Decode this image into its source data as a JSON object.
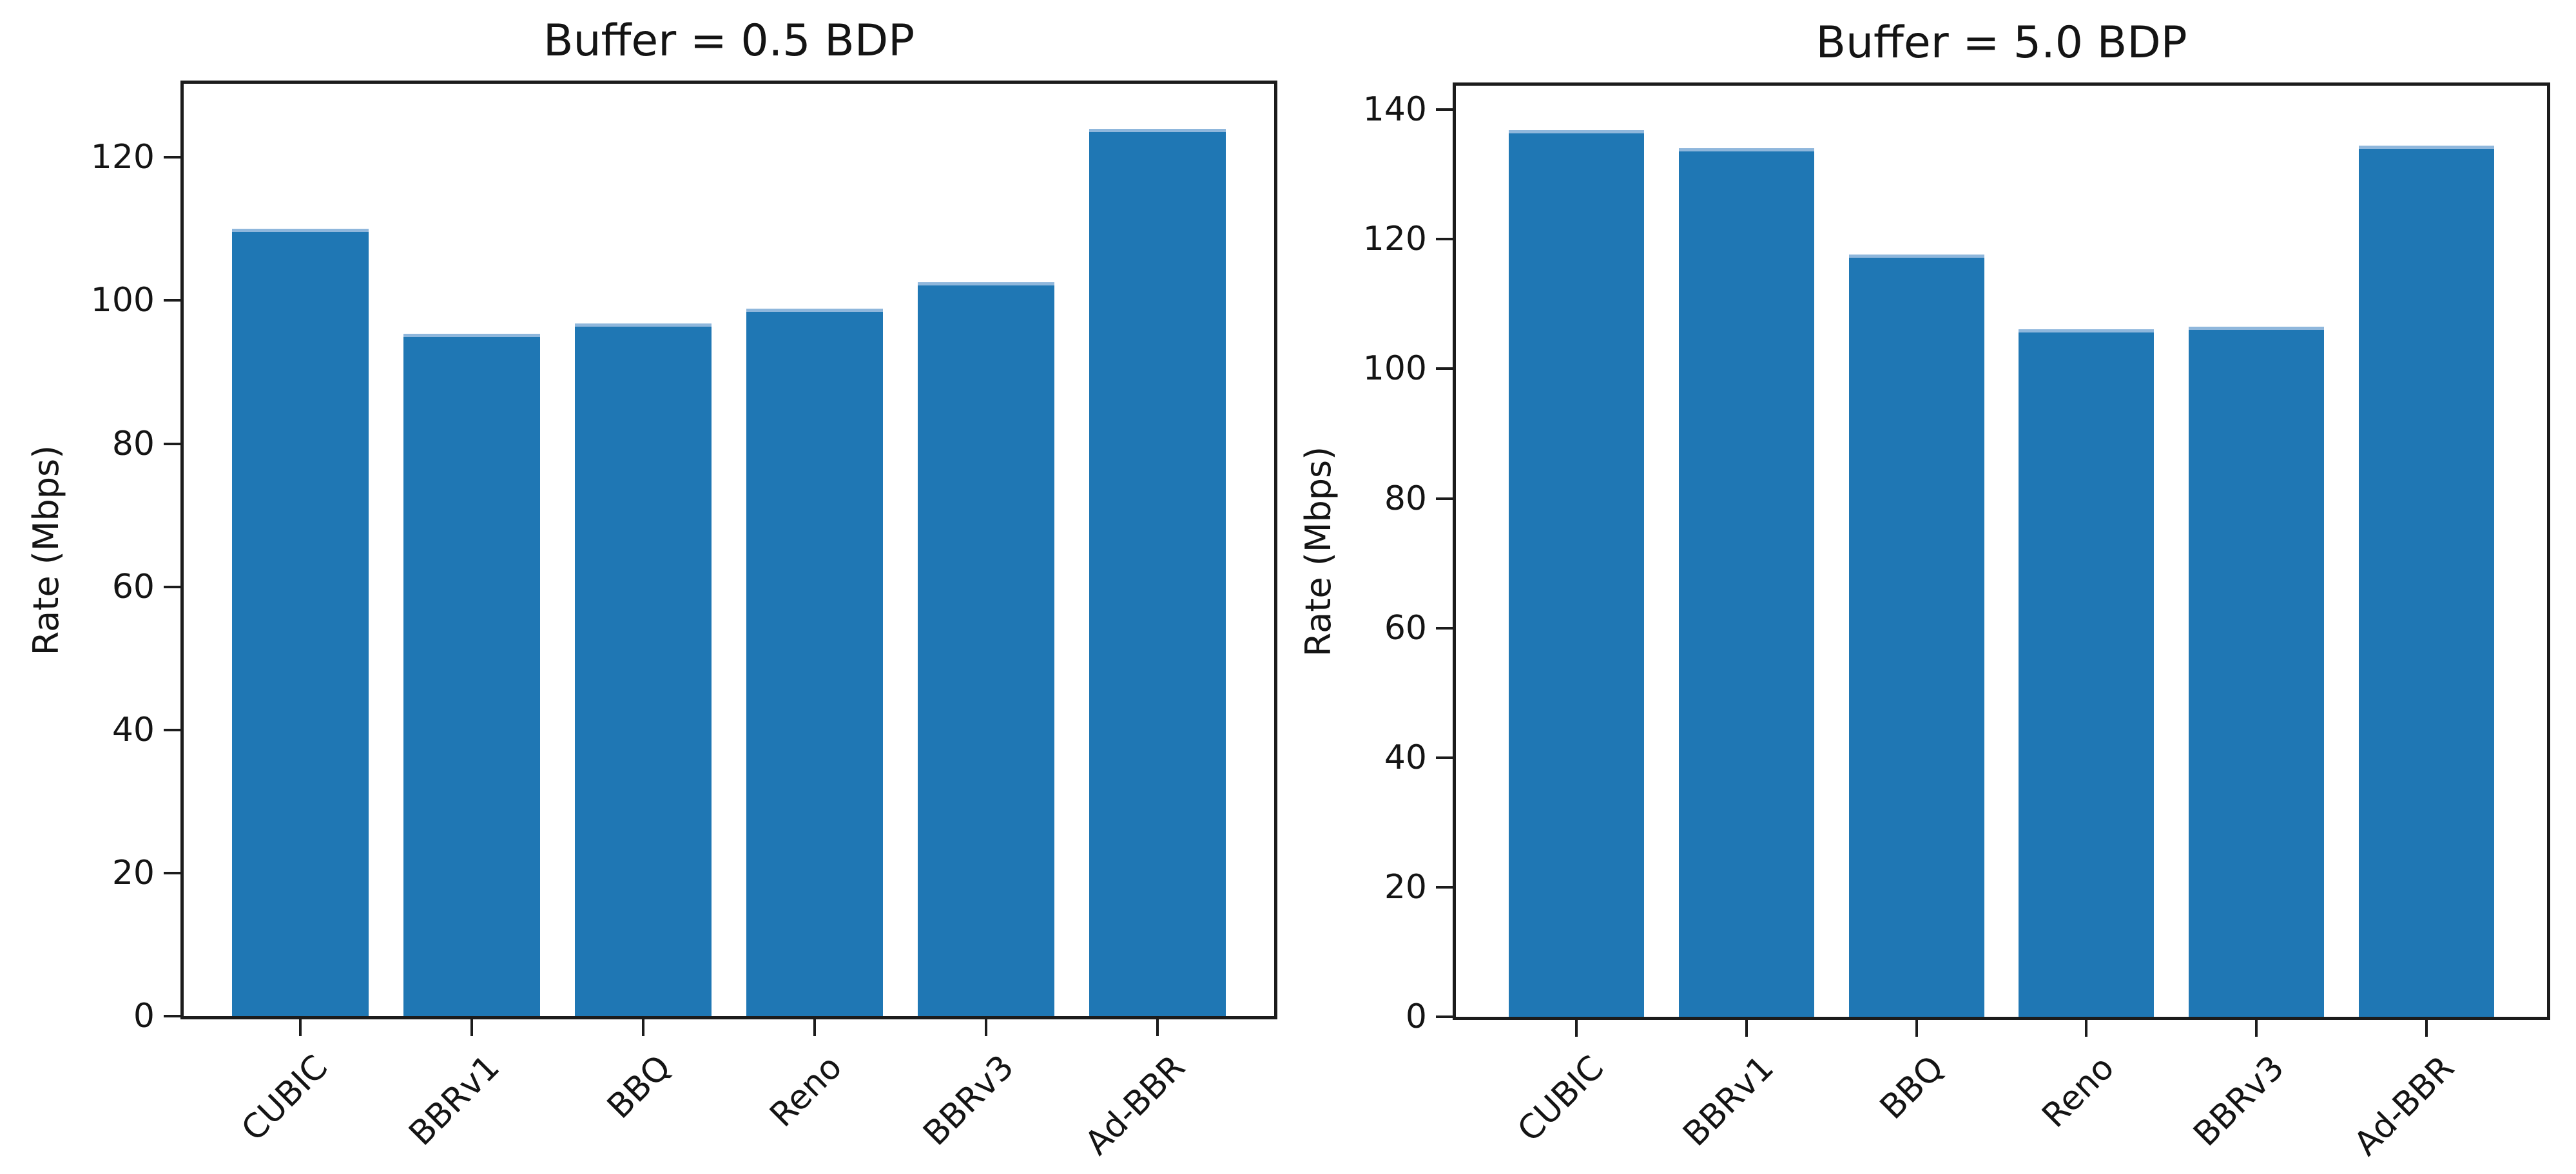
{
  "figure": {
    "background": "#ffffff",
    "bar_color": "#1f77b4",
    "bar_top_highlight": "#8fb7dc",
    "axis_color": "#1c1c1c",
    "text_color": "#141414"
  },
  "chart_data": [
    {
      "type": "bar",
      "title": "Buffer = 0.5 BDP",
      "xlabel": "",
      "ylabel": "Rate (Mbps)",
      "categories": [
        "CUBIC",
        "BBRv1",
        "BBQ",
        "Reno",
        "BBRv3",
        "Ad-BBR"
      ],
      "values": [
        110.0,
        95.4,
        96.8,
        98.9,
        102.6,
        124.0
      ],
      "yticks": [
        0,
        20,
        40,
        60,
        80,
        100,
        120
      ],
      "ylim": [
        0,
        130.3
      ],
      "grid": false,
      "legend": "none",
      "x_tick_rotation_deg": 45,
      "bar_width_fraction": 0.8
    },
    {
      "type": "bar",
      "title": "Buffer = 5.0 BDP",
      "xlabel": "",
      "ylabel": "Rate (Mbps)",
      "categories": [
        "CUBIC",
        "BBRv1",
        "BBQ",
        "Reno",
        "BBRv3",
        "Ad-BBR"
      ],
      "values": [
        136.8,
        134.1,
        117.6,
        106.1,
        106.5,
        134.5
      ],
      "yticks": [
        0,
        20,
        40,
        60,
        80,
        100,
        120,
        140
      ],
      "ylim": [
        0,
        143.7
      ],
      "grid": false,
      "legend": "none",
      "x_tick_rotation_deg": 45,
      "bar_width_fraction": 0.8
    }
  ]
}
